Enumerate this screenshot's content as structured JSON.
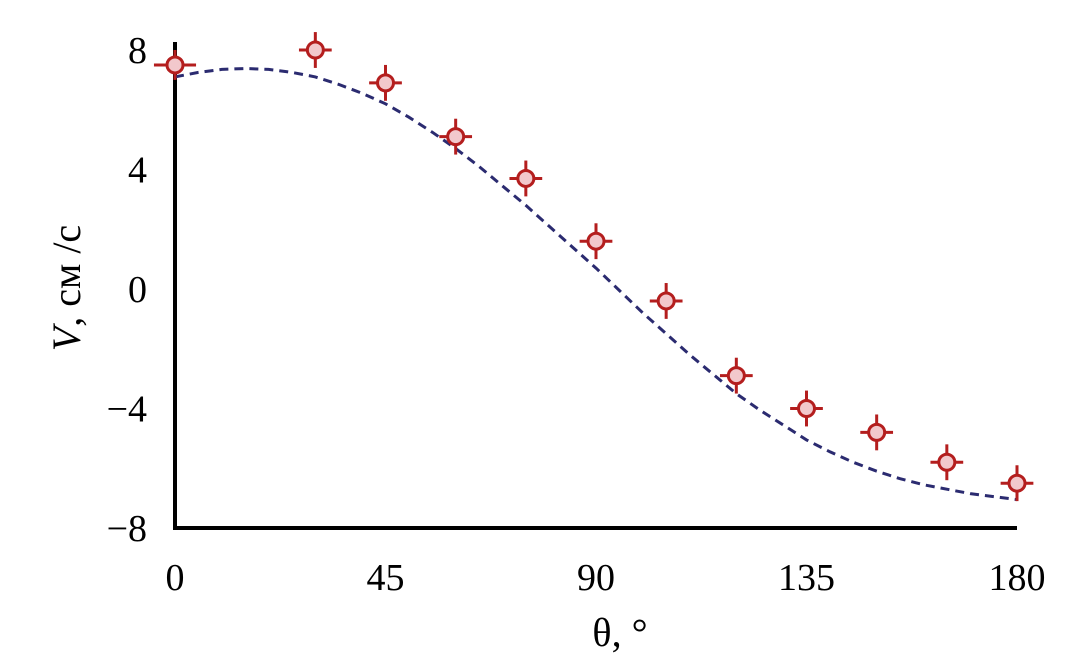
{
  "chart_data": {
    "type": "scatter",
    "title": "",
    "xlabel": "θ, °",
    "ylabel_italic": "V",
    "ylabel_rest": ", см /с",
    "xlim": [
      0,
      180
    ],
    "ylim": [
      -8,
      8
    ],
    "x_ticks": [
      0,
      45,
      90,
      135,
      180
    ],
    "y_ticks": [
      8,
      4,
      0,
      -4,
      -8
    ],
    "x_tick_labels": [
      "0",
      "45",
      "90",
      "135",
      "180"
    ],
    "y_tick_labels": [
      "8",
      "4",
      "0",
      "−4",
      "−8"
    ],
    "grid": false,
    "series": [
      {
        "kind": "markers-with-error-bars",
        "color": "#b41e1e",
        "fill": "#f2c8cc",
        "x": [
          0,
          30,
          45,
          60,
          75,
          90,
          105,
          120,
          135,
          150,
          165,
          180
        ],
        "y": [
          7.5,
          8.0,
          6.9,
          5.1,
          3.7,
          1.6,
          -0.4,
          -2.9,
          -4.0,
          -4.8,
          -5.8,
          -6.5
        ],
        "yerr": [
          0.5,
          0.6,
          0.6,
          0.6,
          0.6,
          0.6,
          0.6,
          0.6,
          0.6,
          0.6,
          0.6,
          0.6
        ],
        "xerr": [
          4.5,
          3.5,
          3.5,
          3.5,
          3.5,
          3.5,
          3.5,
          3.5,
          3.5,
          3.5,
          3.5,
          3.5
        ]
      },
      {
        "kind": "dashed-fit-line",
        "color": "#2b2b70",
        "x": [
          0,
          5,
          10,
          15,
          20,
          25,
          30,
          35,
          40,
          45,
          50,
          55,
          60,
          65,
          70,
          75,
          80,
          85,
          90,
          95,
          100,
          105,
          110,
          115,
          120,
          125,
          130,
          135,
          140,
          145,
          150,
          155,
          160,
          165,
          170,
          175,
          180
        ],
        "y": [
          7.1,
          7.25,
          7.35,
          7.38,
          7.35,
          7.25,
          7.1,
          6.85,
          6.55,
          6.2,
          5.75,
          5.25,
          4.7,
          4.1,
          3.45,
          2.8,
          2.1,
          1.4,
          0.7,
          -0.05,
          -0.8,
          -1.5,
          -2.2,
          -2.85,
          -3.5,
          -4.05,
          -4.55,
          -5.05,
          -5.45,
          -5.8,
          -6.1,
          -6.35,
          -6.55,
          -6.7,
          -6.85,
          -6.95,
          -7.05
        ]
      }
    ]
  }
}
